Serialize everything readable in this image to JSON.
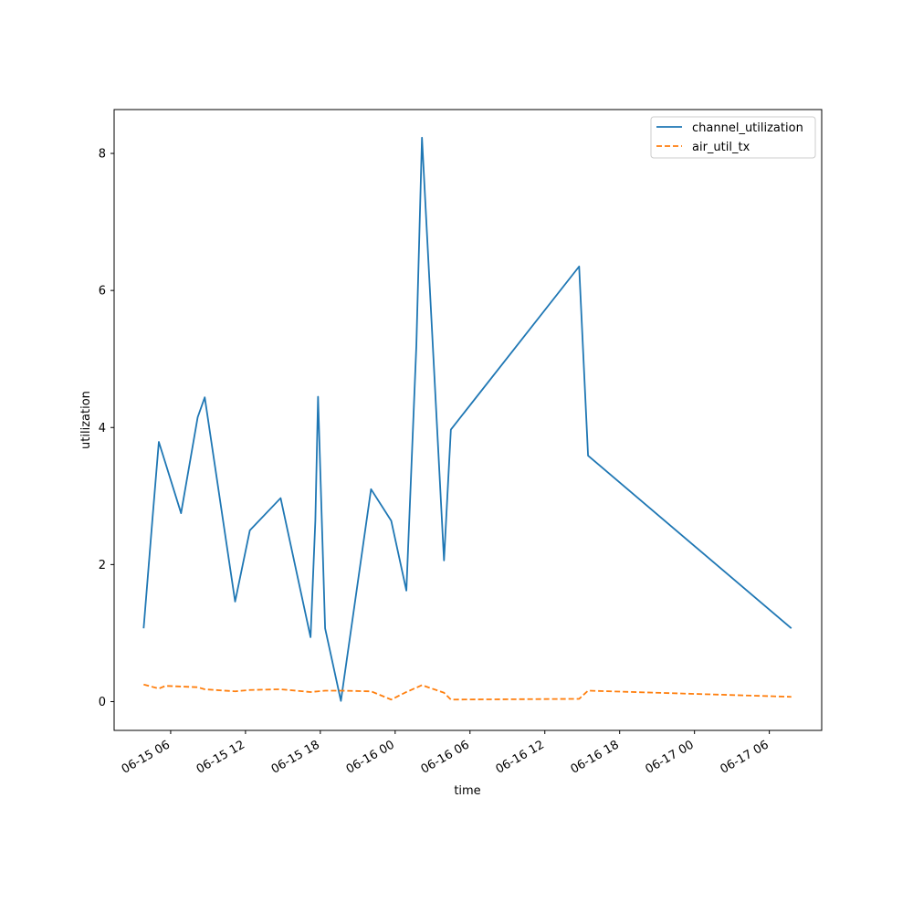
{
  "chart_data": {
    "type": "line",
    "xlabel": "time",
    "ylabel": "utilization",
    "x_axis_type": "datetime",
    "xlim": [
      "2024-06-15T01:28:00",
      "2024-06-17T10:12:00"
    ],
    "ylim": [
      -0.42,
      8.64
    ],
    "x_ticks": [
      "2024-06-15T06:00",
      "2024-06-15T12:00",
      "2024-06-15T18:00",
      "2024-06-16T00:00",
      "2024-06-16T06:00",
      "2024-06-16T12:00",
      "2024-06-16T18:00",
      "2024-06-17T00:00",
      "2024-06-17T06:00"
    ],
    "x_tick_labels": [
      "06-15 06",
      "06-15 12",
      "06-15 18",
      "06-16 00",
      "06-16 06",
      "06-16 12",
      "06-16 18",
      "06-17 00",
      "06-17 06"
    ],
    "y_ticks": [
      0,
      2,
      4,
      6,
      8
    ],
    "y_tick_labels": [
      "0",
      "2",
      "4",
      "6",
      "8"
    ],
    "grid": false,
    "legend_position": "top-right",
    "series": [
      {
        "name": "channel_utilization",
        "color": "#1f77b4",
        "style": "solid",
        "points": [
          [
            "2024-06-15T03:50:00",
            1.07
          ],
          [
            "2024-06-15T04:32:00",
            2.65
          ],
          [
            "2024-06-15T05:03:00",
            3.79
          ],
          [
            "2024-06-15T05:35:00",
            3.48
          ],
          [
            "2024-06-15T06:50:00",
            2.75
          ],
          [
            "2024-06-15T08:10:00",
            4.15
          ],
          [
            "2024-06-15T08:44:00",
            4.44
          ],
          [
            "2024-06-15T11:10:00",
            1.46
          ],
          [
            "2024-06-15T12:21:00",
            2.5
          ],
          [
            "2024-06-15T14:49:00",
            2.97
          ],
          [
            "2024-06-15T17:13:00",
            0.94
          ],
          [
            "2024-06-15T17:36:00",
            2.64
          ],
          [
            "2024-06-15T17:49:00",
            4.45
          ],
          [
            "2024-06-15T18:23:00",
            1.07
          ],
          [
            "2024-06-15T19:39:00",
            0.01
          ],
          [
            "2024-06-15T22:04:00",
            3.1
          ],
          [
            "2024-06-15T23:41:00",
            2.64
          ],
          [
            "2024-06-16T00:54:00",
            1.62
          ],
          [
            "2024-06-16T01:42:00",
            5.2
          ],
          [
            "2024-06-16T02:09:00",
            8.23
          ],
          [
            "2024-06-16T03:55:00",
            2.06
          ],
          [
            "2024-06-16T04:28:00",
            3.97
          ],
          [
            "2024-06-16T14:45:00",
            6.35
          ],
          [
            "2024-06-16T15:28:00",
            3.59
          ],
          [
            "2024-06-17T07:46:00",
            1.07
          ]
        ]
      },
      {
        "name": "air_util_tx",
        "color": "#ff7f0e",
        "style": "dashed",
        "points": [
          [
            "2024-06-15T03:50:00",
            0.25
          ],
          [
            "2024-06-15T05:03:00",
            0.19
          ],
          [
            "2024-06-15T05:35:00",
            0.23
          ],
          [
            "2024-06-15T06:50:00",
            0.22
          ],
          [
            "2024-06-15T08:10:00",
            0.21
          ],
          [
            "2024-06-15T08:44:00",
            0.18
          ],
          [
            "2024-06-15T11:10:00",
            0.15
          ],
          [
            "2024-06-15T12:21:00",
            0.17
          ],
          [
            "2024-06-15T14:49:00",
            0.18
          ],
          [
            "2024-06-15T17:13:00",
            0.14
          ],
          [
            "2024-06-15T17:49:00",
            0.15
          ],
          [
            "2024-06-15T18:23:00",
            0.16
          ],
          [
            "2024-06-15T19:39:00",
            0.16
          ],
          [
            "2024-06-15T22:04:00",
            0.15
          ],
          [
            "2024-06-15T23:41:00",
            0.03
          ],
          [
            "2024-06-16T00:54:00",
            0.14
          ],
          [
            "2024-06-16T02:09:00",
            0.24
          ],
          [
            "2024-06-16T03:55:00",
            0.13
          ],
          [
            "2024-06-16T04:28:00",
            0.03
          ],
          [
            "2024-06-16T14:45:00",
            0.04
          ],
          [
            "2024-06-16T15:28:00",
            0.16
          ],
          [
            "2024-06-17T07:46:00",
            0.07
          ]
        ]
      }
    ]
  }
}
